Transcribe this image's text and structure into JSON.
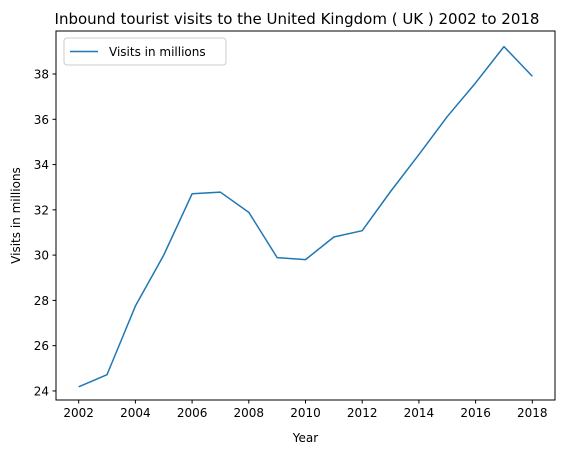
{
  "chart_data": {
    "type": "line",
    "title": "Inbound tourist visits to the United Kingdom ( UK ) 2002 to 2018",
    "xlabel": "Year",
    "ylabel": "Visits in millions",
    "xlim": [
      2001.2,
      2018.8
    ],
    "ylim": [
      23.6,
      39.9
    ],
    "xticks": [
      2002,
      2004,
      2006,
      2008,
      2010,
      2012,
      2014,
      2016,
      2018
    ],
    "yticks": [
      24,
      26,
      28,
      30,
      32,
      34,
      36,
      38
    ],
    "grid": false,
    "legend_position": "upper-left",
    "series": [
      {
        "name": "Visits in millions",
        "color": "#1f77b4",
        "x": [
          2002,
          2003,
          2004,
          2005,
          2006,
          2007,
          2008,
          2009,
          2010,
          2011,
          2012,
          2013,
          2014,
          2015,
          2016,
          2017,
          2018
        ],
        "values": [
          24.18,
          24.72,
          27.75,
          30.0,
          32.71,
          32.78,
          31.89,
          29.89,
          29.8,
          30.8,
          31.08,
          32.81,
          34.44,
          36.12,
          37.61,
          39.21,
          37.9
        ]
      }
    ]
  }
}
